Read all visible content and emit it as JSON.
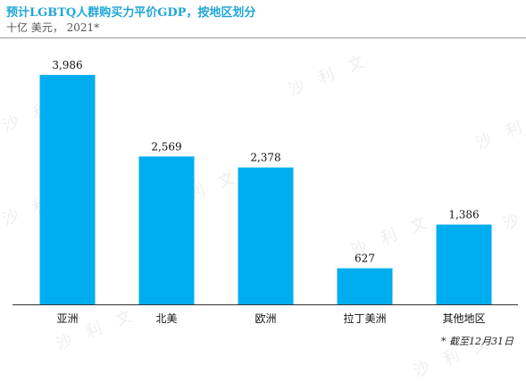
{
  "header": {
    "title": "预计LGBTQ人群购买力平价GDP，按地区划分",
    "subtitle": "十亿 美元， 2021*"
  },
  "footnote": "* 截至12月31日",
  "watermark": "沙 利 文",
  "colors": {
    "bar": "#00aeef",
    "title": "#1fa7d8",
    "axis": "#333333"
  },
  "chart_data": {
    "type": "bar",
    "title": "预计LGBTQ人群购买力平价GDP，按地区划分",
    "subtitle": "十亿 美元， 2021*",
    "xlabel": "",
    "ylabel": "",
    "categories": [
      "亚洲",
      "北美",
      "欧洲",
      "拉丁美洲",
      "其他地区"
    ],
    "values": [
      3986,
      2569,
      2378,
      627,
      1386
    ],
    "value_labels": [
      "3,986",
      "2,569",
      "2,378",
      "627",
      "1,386"
    ],
    "ylim": [
      0,
      4000
    ],
    "grid": false,
    "legend": "none"
  }
}
